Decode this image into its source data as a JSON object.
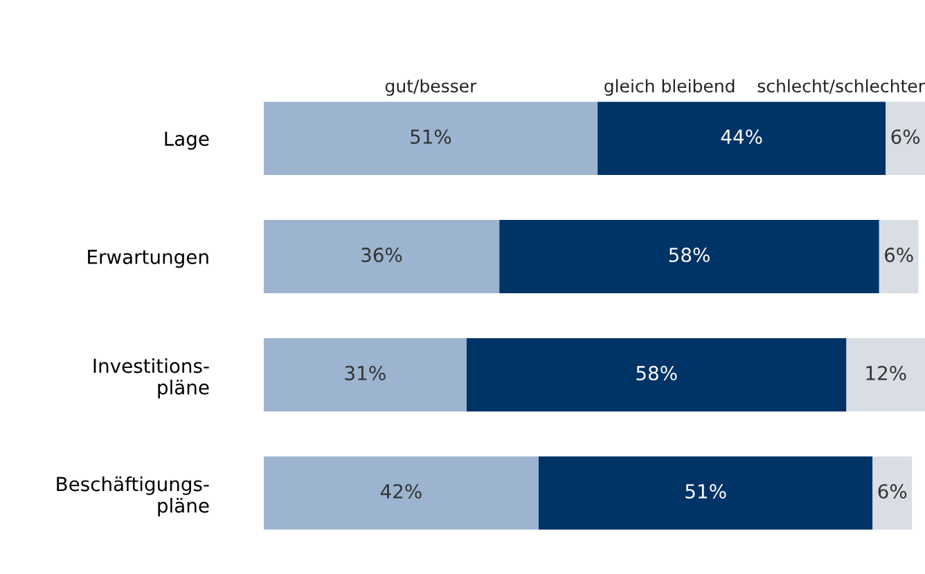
{
  "chart_data": {
    "type": "bar",
    "orientation": "horizontal",
    "stacked": true,
    "legend": "top",
    "grid": false,
    "categories": [
      "Lage",
      "Erwartungen",
      "Investitions-\npläne",
      "Beschäftigungs-\npläne"
    ],
    "series": [
      {
        "name": "gut/besser",
        "color": "#9cb4d0",
        "values": [
          51,
          36,
          31,
          42
        ],
        "value_labels": [
          "51%",
          "36%",
          "31%",
          "42%"
        ]
      },
      {
        "name": "gleich bleibend",
        "color": "#003366",
        "values": [
          44,
          58,
          58,
          51
        ],
        "value_labels": [
          "44%",
          "58%",
          "58%",
          "51%"
        ]
      },
      {
        "name": "schlecht/schlechter",
        "color": "#d9dde4",
        "values": [
          6,
          6,
          12,
          6
        ],
        "value_labels": [
          "6%",
          "6%",
          "12%",
          "6%"
        ]
      }
    ]
  }
}
